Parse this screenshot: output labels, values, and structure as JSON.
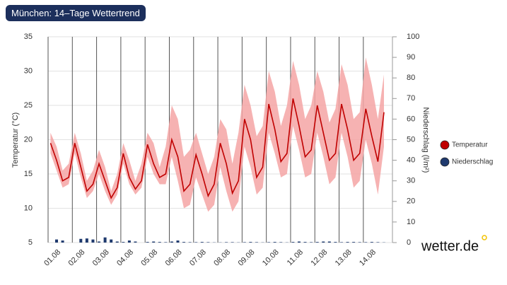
{
  "chart_data": {
    "type": "line",
    "title": "München: 14–Tage Wettertrend",
    "y_label": "Temperatur (°C)",
    "y2_label": "Niederschlag (l/m²)",
    "logo": "wetter.de",
    "xlim": [
      0,
      14.2
    ],
    "xticks": [
      {
        "value": 0,
        "label": "01.08"
      },
      {
        "value": 1,
        "label": "02.08"
      },
      {
        "value": 2,
        "label": "03.08"
      },
      {
        "value": 3,
        "label": "04.08"
      },
      {
        "value": 4,
        "label": "05.08"
      },
      {
        "value": 5,
        "label": "06.08"
      },
      {
        "value": 6,
        "label": "07.08"
      },
      {
        "value": 7,
        "label": "08.08"
      },
      {
        "value": 8,
        "label": "09.08"
      },
      {
        "value": 9,
        "label": "10.08"
      },
      {
        "value": 10,
        "label": "11.08"
      },
      {
        "value": 11,
        "label": "12.08"
      },
      {
        "value": 12,
        "label": "13.08"
      },
      {
        "value": 13,
        "label": "14.08"
      }
    ],
    "ylim": [
      5,
      35
    ],
    "yticks": [
      5,
      10,
      15,
      20,
      25,
      30,
      35
    ],
    "y2lim": [
      0,
      100
    ],
    "y2ticks": [
      0,
      10,
      20,
      30,
      40,
      50,
      60,
      70,
      80,
      90,
      100
    ],
    "grid": true,
    "legend": "right",
    "x": [
      0.1,
      0.35,
      0.6,
      0.85,
      1.1,
      1.35,
      1.6,
      1.85,
      2.1,
      2.35,
      2.6,
      2.85,
      3.1,
      3.35,
      3.6,
      3.85,
      4.1,
      4.35,
      4.6,
      4.85,
      5.1,
      5.35,
      5.6,
      5.85,
      6.1,
      6.35,
      6.6,
      6.85,
      7.1,
      7.35,
      7.6,
      7.85,
      8.1,
      8.35,
      8.6,
      8.85,
      9.1,
      9.35,
      9.6,
      9.85,
      10.1,
      10.35,
      10.6,
      10.85,
      11.1,
      11.35,
      11.6,
      11.85,
      12.1,
      12.35,
      12.6,
      12.85,
      13.1,
      13.35,
      13.6,
      13.85
    ],
    "band": {
      "color": "#f5a5a5",
      "upper": [
        21,
        19,
        15.5,
        16.5,
        21,
        18,
        14,
        15.5,
        18.5,
        16,
        12.5,
        15,
        19.5,
        17,
        14,
        16.5,
        21,
        19.5,
        16,
        19,
        25,
        23,
        17.5,
        18.5,
        21,
        18,
        15,
        17.5,
        23,
        21.5,
        16.5,
        21,
        28,
        25,
        20.5,
        22,
        30,
        27,
        22,
        25,
        31.5,
        28,
        23,
        25,
        30,
        27,
        22.5,
        24.5,
        31,
        28,
        23,
        24,
        32,
        28,
        23,
        29.5
      ],
      "lower": [
        18,
        15.5,
        13,
        13.5,
        18,
        14.5,
        11.5,
        12.5,
        15,
        12.5,
        10.5,
        12,
        16.5,
        13.5,
        12,
        13,
        17.5,
        15,
        13.5,
        13.5,
        17.5,
        14,
        10,
        10.5,
        14.5,
        12,
        9.5,
        10.5,
        16,
        12.5,
        9.5,
        11,
        19,
        16,
        12,
        13,
        21,
        18,
        14.5,
        15,
        22,
        18.5,
        14.5,
        15,
        21,
        17.5,
        13.5,
        14.5,
        21,
        17.5,
        13,
        14,
        20,
        16.5,
        12,
        19
      ]
    },
    "series": [
      {
        "name": "Temperatur",
        "color": "#c00000",
        "values": [
          19.5,
          17.0,
          14.0,
          14.5,
          19.5,
          16.0,
          12.5,
          13.5,
          16.5,
          14.0,
          11.5,
          13.0,
          18.0,
          14.5,
          12.8,
          14.0,
          19.3,
          16.5,
          14.5,
          15.0,
          20.0,
          17.5,
          12.5,
          13.5,
          17.8,
          15.0,
          11.8,
          13.5,
          19.5,
          16.5,
          12.2,
          14.0,
          23.0,
          20.0,
          14.5,
          16.0,
          25.2,
          21.5,
          16.8,
          18.0,
          26.0,
          22.0,
          17.5,
          18.5,
          25.0,
          21.0,
          17.0,
          18.0,
          25.2,
          21.5,
          17.0,
          18.0,
          24.5,
          20.5,
          16.8,
          24.0
        ]
      },
      {
        "name": "Niederschlag",
        "color": "#1f3a6e",
        "axis": "y2",
        "values": [
          0,
          1.5,
          1,
          0,
          0,
          1.8,
          2,
          1.5,
          0.5,
          2.5,
          1.5,
          0.5,
          0.3,
          1,
          0.5,
          0,
          0.3,
          0.5,
          0.3,
          0.2,
          0.5,
          1,
          0.3,
          0.2,
          0.2,
          0.3,
          0.2,
          0.1,
          0.1,
          0.2,
          0.2,
          0.1,
          0.2,
          0.3,
          0.2,
          0.1,
          0.2,
          0.3,
          0.2,
          0.1,
          0.3,
          0.5,
          0.3,
          0.2,
          0.3,
          0.5,
          0.5,
          0.3,
          0.2,
          0.3,
          0.3,
          0.2,
          0.2,
          0.3,
          0.2,
          0.1
        ]
      }
    ]
  }
}
